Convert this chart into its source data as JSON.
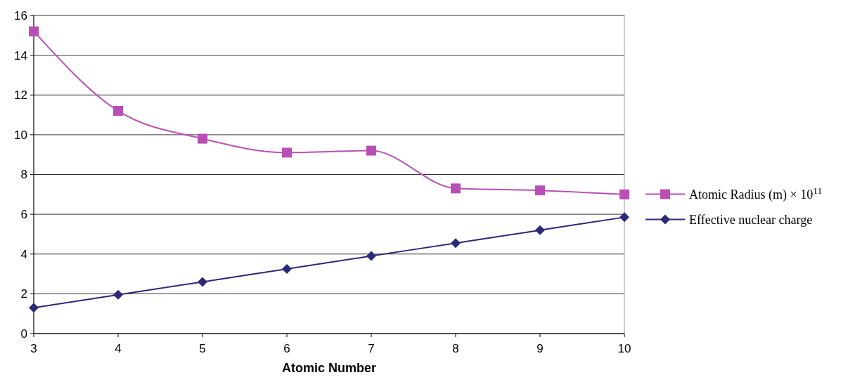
{
  "chart_data": {
    "type": "line",
    "xlabel": "Atomic Number",
    "x": [
      3,
      4,
      5,
      6,
      7,
      8,
      9,
      10
    ],
    "xlim": [
      3,
      10
    ],
    "xticks": [
      3,
      4,
      5,
      6,
      7,
      8,
      9,
      10
    ],
    "ylim": [
      0,
      16
    ],
    "yticks": [
      0,
      2,
      4,
      6,
      8,
      10,
      12,
      14,
      16
    ],
    "grid": "y",
    "legend": "right",
    "series": [
      {
        "name": "Atomic Radius (m) × 10$^{11}$",
        "color": "#b94fb4",
        "marker": "square",
        "values": [
          15.2,
          11.2,
          9.8,
          9.1,
          9.2,
          7.3,
          7.2,
          7.0
        ]
      },
      {
        "name": "Effective nuclear charge",
        "color": "#2a2a78",
        "marker": "diamond",
        "values": [
          1.3,
          1.95,
          2.6,
          3.25,
          3.9,
          4.55,
          5.2,
          5.85
        ]
      }
    ]
  }
}
